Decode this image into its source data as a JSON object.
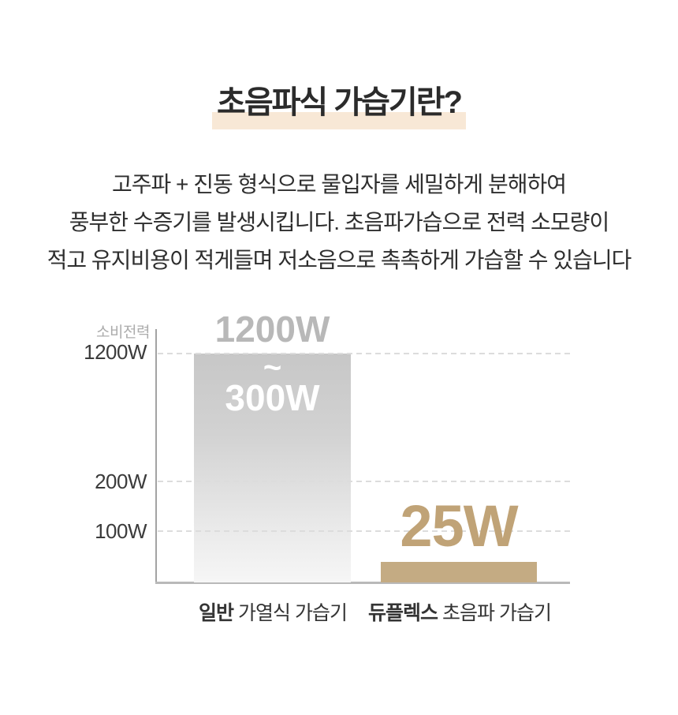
{
  "title": {
    "text": "초음파식 가습기란?"
  },
  "description": {
    "lines": [
      "고주파 + 진동 형식으로 물입자를 세밀하게 분해하여",
      "풍부한 수증기를 발생시킵니다. 초음파가습으로 전력 소모량이",
      "적고 유지비용이 적게들며 저소음으로 촉촉하게 가습할 수 있습니다"
    ]
  },
  "chart": {
    "axis_label": "소비전력",
    "yticks": [
      "1200W",
      "200W",
      "100W"
    ],
    "bar_heating": {
      "top_label": "1200W",
      "tilde": "~",
      "bottom_label": "300W",
      "category_bold": "일반",
      "category_rest": " 가열식 가습기"
    },
    "bar_ultrasonic": {
      "label": "25W",
      "category_bold": "듀플렉스",
      "category_rest": " 초음파 가습기"
    },
    "colors": {
      "highlight": "#f8e8d6",
      "bar_gray_top": "#c7c7c7",
      "bar_gray_bottom": "#f6f6f6",
      "bar_tan": "#c4ab83",
      "value_tan_text": "#c0a377",
      "value_gray_text": "#b8b8b8",
      "gridline": "#dcdcdc",
      "axis": "#a3a3a3"
    }
  },
  "chart_data": {
    "type": "bar",
    "title": "초음파식 가습기란?",
    "categories": [
      "일반 가열식 가습기",
      "듀플렉스 초음파 가습기"
    ],
    "series": [
      {
        "name": "소비전력",
        "values": [
          1200,
          25
        ]
      }
    ],
    "value_labels": [
      "1200W~300W",
      "25W"
    ],
    "value_ranges": [
      {
        "max_w": 1200,
        "min_w": 300
      },
      {
        "max_w": 25,
        "min_w": 25
      }
    ],
    "ylabel": "소비전력",
    "yticks": [
      "1200W",
      "200W",
      "100W"
    ],
    "ylim": [
      0,
      1300
    ],
    "grid": true,
    "legend": false,
    "axis_scale": "non-linear (compressed above 200W)"
  }
}
